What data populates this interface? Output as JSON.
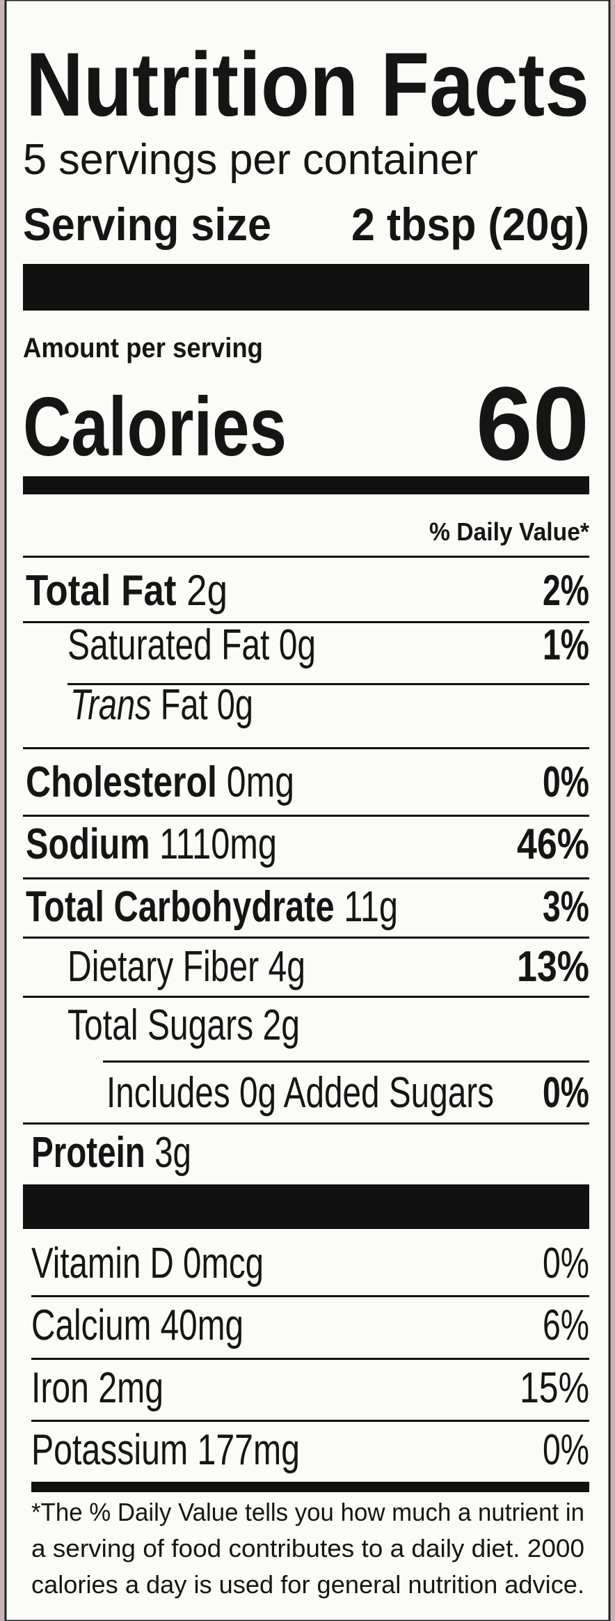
{
  "header": {
    "title": "Nutrition Facts",
    "servings": "5 servings per container",
    "serving_size_label": "Serving size",
    "serving_size_value": "2 tbsp (20g)"
  },
  "calories": {
    "amount_label": "Amount per serving",
    "label": "Calories",
    "value": 60
  },
  "daily_value_header": "% Daily Value*",
  "nutrients": [
    {
      "name": "Total Fat",
      "amount": "2g",
      "dv": "2%"
    },
    {
      "name": "Saturated Fat",
      "amount": "0g",
      "dv": "1%"
    },
    {
      "name_italic": "Trans",
      "name": "Fat",
      "amount": "0g"
    },
    {
      "name": "Cholesterol",
      "amount": "0mg",
      "dv": "0%"
    },
    {
      "name": "Sodium",
      "amount": "1110mg",
      "dv": "46%"
    },
    {
      "name": "Total Carbohydrate",
      "amount": "11g",
      "dv": "3%"
    },
    {
      "name": "Dietary Fiber",
      "amount": "4g",
      "dv": "13%"
    },
    {
      "name": "Total Sugars",
      "amount": "2g"
    },
    {
      "name": "Includes 0g Added Sugars",
      "dv": "0%"
    },
    {
      "name": "Protein",
      "amount": "3g"
    }
  ],
  "vitamins": [
    {
      "name": "Vitamin D",
      "amount": "0mcg",
      "dv": "0%"
    },
    {
      "name": "Calcium",
      "amount": "40mg",
      "dv": "6%"
    },
    {
      "name": "Iron",
      "amount": "2mg",
      "dv": "15%"
    },
    {
      "name": "Potassium",
      "amount": "177mg",
      "dv": "0%"
    }
  ],
  "footnote": [
    "*The % Daily Value tells you how much a nutrient in",
    "a serving of food contributes to a daily diet. 2000",
    "calories a day is used for general nutrition advice."
  ]
}
